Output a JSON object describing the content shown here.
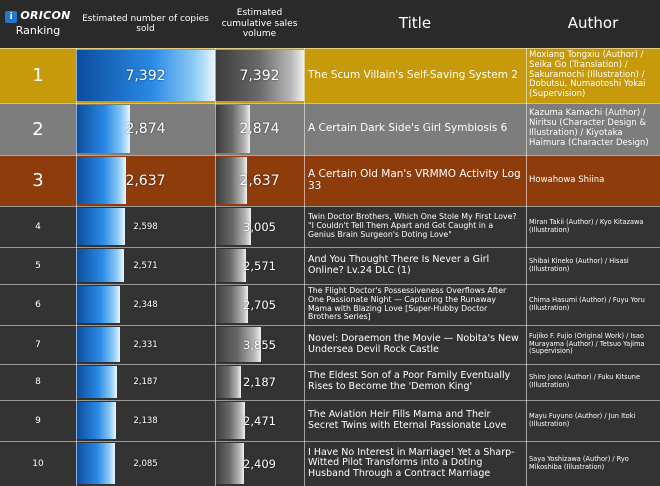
{
  "header": {
    "brand": "ORICON",
    "brand_mark": "i",
    "rank_label": "Ranking",
    "sold_label": "Estimated number of copies sold",
    "cum_label": "Estimated cumulative sales volume",
    "title_label": "Title",
    "author_label": "Author"
  },
  "colors": {
    "rank1": "#c69a0a",
    "rank2": "#7d7d7d",
    "rank3": "#8e3c0c",
    "rank_other": "#333333"
  },
  "rows": [
    {
      "rank": "1",
      "sold": 7392,
      "sold_label": "7,392",
      "cumulative": 7392,
      "cumulative_label": "7,392",
      "title": "The Scum Villain's Self-Saving System 2",
      "author": "Moxiang Tongxiu (Author) / Seika Go (Translation) / Sakuramochi (Illustration) / Dobutsu, Numaotoshi Yokai (Supervision)"
    },
    {
      "rank": "2",
      "sold": 2874,
      "sold_label": "2,874",
      "cumulative": 2874,
      "cumulative_label": "2,874",
      "title": "A Certain Dark Side's Girl Symbiosis 6",
      "author": "Kazuma Kamachi (Author) / Niritsu (Character Design & Illustration) / Kiyotaka Haimura (Character Design)"
    },
    {
      "rank": "3",
      "sold": 2637,
      "sold_label": "2,637",
      "cumulative": 2637,
      "cumulative_label": "2,637",
      "title": "A Certain Old Man's VRMMO Activity Log 33",
      "author": "Howahowa Shiina"
    },
    {
      "rank": "4",
      "sold": 2598,
      "sold_label": "2,598",
      "cumulative": 3005,
      "cumulative_label": "3,005",
      "title": "Twin Doctor Brothers, Which One Stole My First Love? \"I Couldn't Tell Them Apart and Got Caught in a Genius Brain Surgeon's Doting Love\"",
      "author": "Miran Takii (Author) / Kyo Kitazawa (Illustration)"
    },
    {
      "rank": "5",
      "sold": 2571,
      "sold_label": "2,571",
      "cumulative": 2571,
      "cumulative_label": "2,571",
      "title": "And You Thought There Is Never a Girl Online? Lv.24 DLC (1)",
      "author": "Shibai Kineko (Author) / Hisasi (Illustration)"
    },
    {
      "rank": "6",
      "sold": 2348,
      "sold_label": "2,348",
      "cumulative": 2705,
      "cumulative_label": "2,705",
      "title": "The Flight Doctor's Possessiveness Overflows After One Passionate Night — Capturing the Runaway Mama with Blazing Love [Super-Hubby Doctor Brothers Series]",
      "author": "Chima Hasumi (Author) / Fuyu Yoru (Illustration)"
    },
    {
      "rank": "7",
      "sold": 2331,
      "sold_label": "2,331",
      "cumulative": 3855,
      "cumulative_label": "3,855",
      "title": "Novel: Doraemon the Movie — Nobita's New Undersea Devil Rock Castle",
      "author": "Fujiko F. Fujio (Original Work) / Isao Murayama (Author) / Tetsuo Yajima (Supervision)"
    },
    {
      "rank": "8",
      "sold": 2187,
      "sold_label": "2,187",
      "cumulative": 2187,
      "cumulative_label": "2,187",
      "title": "The Eldest Son of a Poor Family Eventually Rises to Become the 'Demon King'",
      "author": "Shiro Jono (Author) / Fuku Kitsune (Illustration)"
    },
    {
      "rank": "9",
      "sold": 2138,
      "sold_label": "2,138",
      "cumulative": 2471,
      "cumulative_label": "2,471",
      "title": "The Aviation Heir Fills Mama and Their Secret Twins with Eternal Passionate Love",
      "author": "Mayu Fuyuno (Author) / Jun Itoki (Illustration)"
    },
    {
      "rank": "10",
      "sold": 2085,
      "sold_label": "2,085",
      "cumulative": 2409,
      "cumulative_label": "2,409",
      "title": "I Have No Interest in Marriage! Yet a Sharp-Witted Pilot Transforms into a Doting Husband Through a Contract Marriage",
      "author": "Saya Yoshizawa (Author) / Ryo Mikoshiba (Illustration)"
    }
  ]
}
